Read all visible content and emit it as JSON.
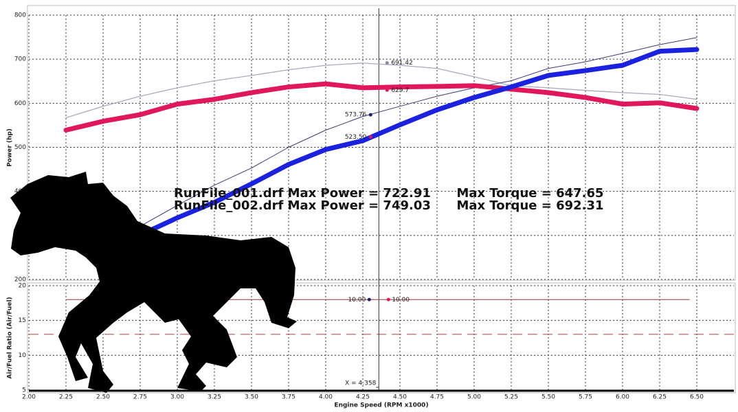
{
  "chart_data": [
    {
      "type": "line",
      "y_label": "Power (hp)",
      "annotations": [
        "RunFile_001.drf Max Power = 722.91      Max Torque = 647.65",
        "RunFile_002.drf Max Power = 749.03      Max Torque = 692.31"
      ],
      "x": [
        2.25,
        2.5,
        2.75,
        3.0,
        3.25,
        3.5,
        3.75,
        4.0,
        4.25,
        4.5,
        4.75,
        5.0,
        5.25,
        5.5,
        5.75,
        6.0,
        6.25,
        6.5
      ],
      "series": [
        {
          "color": "#a9a9c0",
          "width": 1.3,
          "values": [
            567,
            593,
            616,
            635,
            651,
            663,
            676,
            686,
            691,
            686,
            679,
            660,
            640,
            635,
            629,
            624,
            620,
            609
          ]
        },
        {
          "color": "#3a3a80",
          "width": 1,
          "values": [
            null,
            null,
            321,
            368,
            414,
            453,
            500,
            539,
            570,
            593,
            616,
            635,
            651,
            679,
            694,
            713,
            733,
            749
          ]
        },
        {
          "color": "#e0185a",
          "width": 7,
          "values": [
            539,
            559,
            574,
            598,
            609,
            624,
            637,
            644,
            635,
            637,
            638,
            640,
            632,
            624,
            613,
            598,
            601,
            588
          ]
        },
        {
          "color": "#1a22e0",
          "width": 7,
          "values": [
            null,
            null,
            301,
            340,
            375,
            417,
            461,
            495,
            515,
            551,
            585,
            613,
            637,
            663,
            674,
            686,
            718,
            722
          ]
        }
      ],
      "cursor_x": 4.358,
      "markers": {
        "values": [
          691.42,
          629.7,
          573.76,
          523.5
        ],
        "value_labels": [
          "691.42",
          "629.7",
          "573.76",
          "523.50"
        ],
        "colors": [
          "#8888aa",
          "#e0185a",
          "#1a2270",
          "#e0185a"
        ]
      },
      "xlim": [
        2,
        6.75
      ],
      "xticks": [
        2,
        2.25,
        2.5,
        2.75,
        3,
        3.25,
        3.5,
        3.75,
        4,
        4.25,
        4.5,
        4.75,
        5,
        5.25,
        5.5,
        5.75,
        6,
        6.25,
        6.5
      ],
      "ylim": [
        200,
        800
      ],
      "yticks": [
        200,
        300,
        400,
        500,
        600,
        700,
        800
      ],
      "grid": true
    },
    {
      "type": "line",
      "x_label": "Engine Speed (RPM x1000)",
      "y_label": "Air/Fuel Ratio (Air/Fuel)",
      "x": [
        2.25,
        6.45
      ],
      "series": [
        {
          "color": "#9a3030",
          "width": 1,
          "values": [
            18,
            18
          ]
        }
      ],
      "reference_line": 13,
      "cursor_x": 4.358,
      "cursor_label": "X = 4.358",
      "readouts": [
        "10.00",
        "10.00"
      ],
      "readout_colors": [
        "#1a2270",
        "#e0185a"
      ],
      "xlim": [
        2,
        6.75
      ],
      "xticks": [
        {
          "value": 2,
          "label": "2.00"
        },
        {
          "value": 2.25,
          "label": "2.25"
        },
        {
          "value": 2.5,
          "label": "2.50"
        },
        {
          "value": 2.75,
          "label": "2.75"
        },
        {
          "value": 3,
          "label": "3.00"
        },
        {
          "value": 3.25,
          "label": "3.25"
        },
        {
          "value": 3.5,
          "label": "3.50"
        },
        {
          "value": 3.75,
          "label": "3.75"
        },
        {
          "value": 4,
          "label": "4.00"
        },
        {
          "value": 4.25,
          "label": "4.25"
        },
        {
          "value": 4.5,
          "label": "4.50"
        },
        {
          "value": 4.75,
          "label": "4.75"
        },
        {
          "value": 5,
          "label": "5.00"
        },
        {
          "value": 5.25,
          "label": "5.25"
        },
        {
          "value": 5.5,
          "label": "5.50"
        },
        {
          "value": 5.75,
          "label": "5.75"
        },
        {
          "value": 6,
          "label": "6.00"
        },
        {
          "value": 6.25,
          "label": "6.25"
        },
        {
          "value": 6.5,
          "label": "6.50"
        }
      ],
      "ylim": [
        5,
        20
      ],
      "yticks": [
        5,
        10,
        15,
        20
      ],
      "grid": true
    }
  ]
}
